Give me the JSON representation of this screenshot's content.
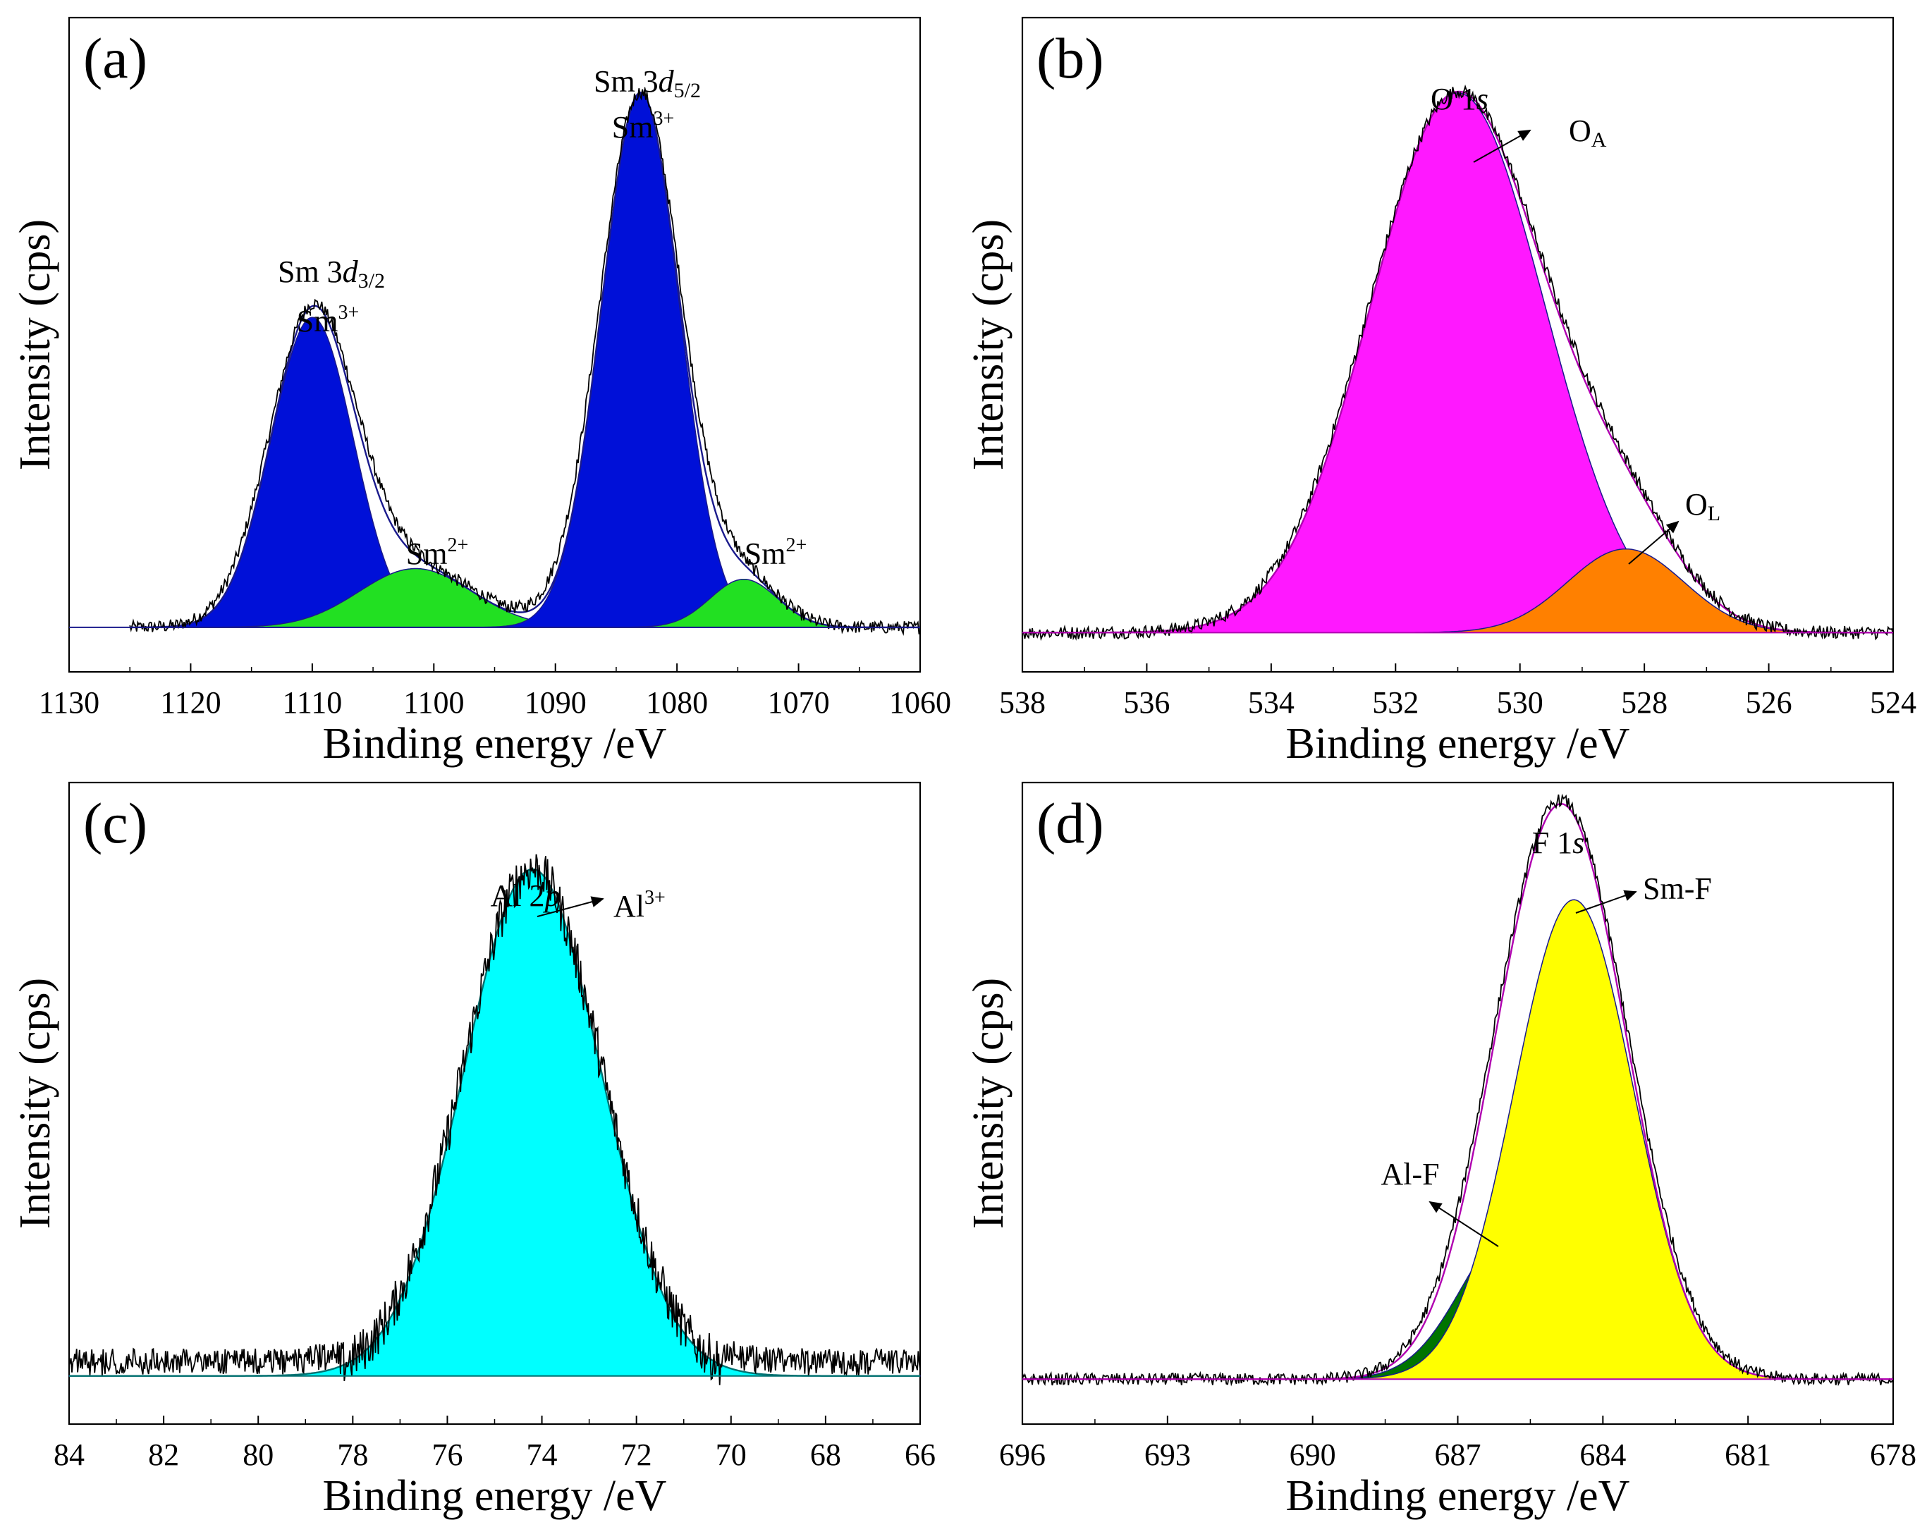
{
  "colors": {
    "blue": "#0010d8",
    "green": "#22e022",
    "magenta": "#ff18ff",
    "orange": "#ff8000",
    "cyan": "#00ffff",
    "darkgreen": "#007400",
    "yellow": "#ffff00",
    "envelope_pink": "#ff2060",
    "envelope_navy": "#1a1a8c",
    "envelope_magenta": "#b000b0",
    "envelope_teal": "#007070",
    "data_black": "#000000"
  },
  "chart_data": [
    {
      "type": "area",
      "panel_label": "(a)",
      "xlabel": "Binding energy /eV",
      "ylabel": "Intensity (cps)",
      "xlim": [
        1130,
        1060
      ],
      "ylim": [
        0,
        1.0
      ],
      "xticks": [
        1130,
        1120,
        1110,
        1100,
        1090,
        1080,
        1070,
        1060
      ],
      "data_range": [
        1125,
        1060
      ],
      "series": [
        {
          "name": "Sm 3d3/2 Sm3+",
          "center": 1110,
          "height": 0.58,
          "fwhm": 8,
          "color": "blue"
        },
        {
          "name": "Sm2+ (1102)",
          "center": 1101.5,
          "height": 0.11,
          "fwhm": 11,
          "color": "green"
        },
        {
          "name": "Sm 3d5/2 Sm3+",
          "center": 1083,
          "height": 1.0,
          "fwhm": 7.5,
          "color": "blue"
        },
        {
          "name": "Sm2+ (1074)",
          "center": 1074.5,
          "height": 0.09,
          "fwhm": 6.5,
          "color": "green"
        }
      ],
      "annotations": [
        {
          "main": "Sm 3",
          "ital": "d",
          "sub": "3/2",
          "sup": ""
        },
        {
          "main": "Sm",
          "sup": "3+"
        },
        {
          "main": "Sm 3",
          "ital": "d",
          "sub": "5/2",
          "sup": ""
        },
        {
          "main": "Sm",
          "sup": "3+"
        },
        {
          "main": "Sm",
          "sup": "2+"
        },
        {
          "main": "Sm",
          "sup": "2+"
        }
      ]
    },
    {
      "type": "area",
      "panel_label": "(b)",
      "xlabel": "Binding energy /eV",
      "ylabel": "Intensity (cps)",
      "xlim": [
        538,
        524
      ],
      "ylim": [
        0,
        1.0
      ],
      "xticks": [
        538,
        536,
        534,
        532,
        530,
        528,
        526,
        524
      ],
      "data_range": [
        538,
        524
      ],
      "series": [
        {
          "name": "OA",
          "center": 531.0,
          "height": 1.0,
          "fwhm": 3.3,
          "color": "magenta"
        },
        {
          "name": "OL",
          "center": 528.3,
          "height": 0.155,
          "fwhm": 2.2,
          "color": "orange"
        }
      ],
      "annotations": [
        {
          "main": "O 1",
          "ital": "s"
        },
        {
          "main": "O",
          "sub": "A"
        },
        {
          "main": "O",
          "sub": "L"
        }
      ]
    },
    {
      "type": "area",
      "panel_label": "(c)",
      "xlabel": "Binding energy /eV",
      "ylabel": "Intensity (cps)",
      "xlim": [
        84,
        66
      ],
      "ylim": [
        0,
        1.0
      ],
      "xticks": [
        84,
        82,
        80,
        78,
        76,
        74,
        72,
        70,
        68,
        66
      ],
      "data_range": [
        84,
        66
      ],
      "series": [
        {
          "name": "Al3+",
          "center": 74.2,
          "height": 1.0,
          "fwhm": 3.4,
          "color": "cyan"
        }
      ],
      "annotations": [
        {
          "main": "Al 2",
          "ital": "p"
        },
        {
          "main": "Al",
          "sup": "3+"
        }
      ]
    },
    {
      "type": "area",
      "panel_label": "(d)",
      "xlabel": "Binding energy /eV",
      "ylabel": "Intensity (cps)",
      "xlim": [
        696,
        678
      ],
      "ylim": [
        0,
        1.0
      ],
      "xticks": [
        696,
        693,
        690,
        687,
        684,
        681,
        678
      ],
      "data_range": [
        696,
        678
      ],
      "series": [
        {
          "name": "Al-F",
          "center": 685.8,
          "height": 0.3,
          "fwhm": 2.6,
          "color": "darkgreen"
        },
        {
          "name": "Sm-F",
          "center": 684.6,
          "height": 0.94,
          "fwhm": 2.9,
          "color": "yellow"
        }
      ],
      "annotations": [
        {
          "main": "F 1",
          "ital": "s"
        },
        {
          "main": "Sm-F"
        },
        {
          "main": "Al-F"
        }
      ]
    }
  ]
}
